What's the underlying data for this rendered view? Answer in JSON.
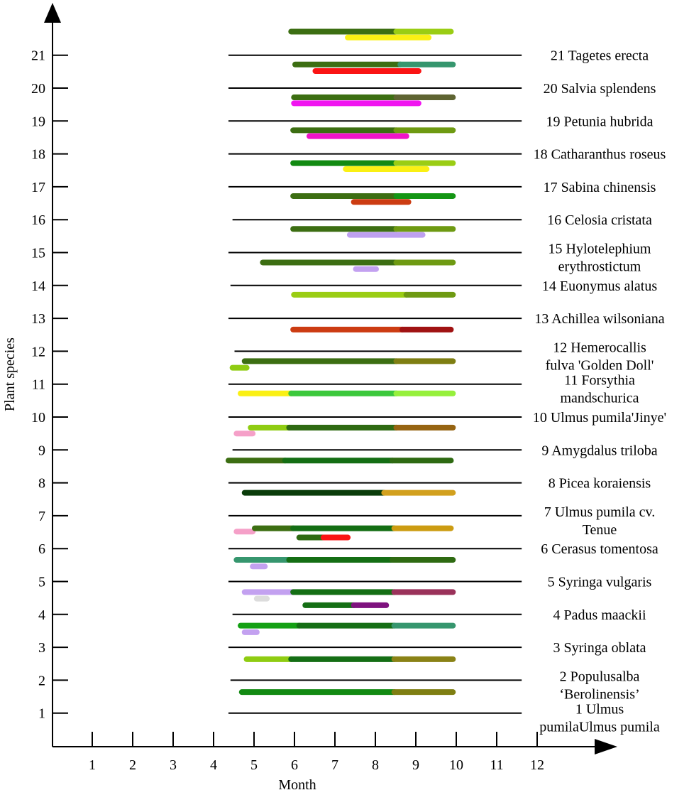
{
  "chart_data": {
    "type": "gantt",
    "title": "",
    "xlabel": "Month",
    "ylabel": "Plant species",
    "xlim": [
      0,
      13.5
    ],
    "ylim": [
      0,
      22.1
    ],
    "x_ticks": [
      "1",
      "2",
      "3",
      "4",
      "5",
      "6",
      "7",
      "8",
      "9",
      "10",
      "11",
      "12"
    ],
    "y_ticks": [
      "1",
      "2",
      "3",
      "4",
      "5",
      "6",
      "7",
      "8",
      "9",
      "10",
      "11",
      "12",
      "13",
      "14",
      "15",
      "16",
      "17",
      "18",
      "19",
      "20",
      "21"
    ],
    "species": [
      {
        "id": 1,
        "lines": [
          "1 Ulmus",
          "pumilaUlmus pumila"
        ],
        "line_x": [
          4.35,
          11.6
        ]
      },
      {
        "id": 2,
        "lines": [
          "2 Populusalba",
          "‘Berolinensis’"
        ],
        "line_x": [
          4.4,
          11.6
        ]
      },
      {
        "id": 3,
        "lines": [
          "3 Syringa oblata"
        ],
        "line_x": [
          4.35,
          11.6
        ]
      },
      {
        "id": 4,
        "lines": [
          "4 Padus maackii"
        ],
        "line_x": [
          4.45,
          11.6
        ]
      },
      {
        "id": 5,
        "lines": [
          "5 Syringa vulgaris"
        ],
        "line_x": [
          4.35,
          11.6
        ]
      },
      {
        "id": 6,
        "lines": [
          "6 Cerasus tomentosa"
        ],
        "line_x": [
          4.35,
          11.6
        ]
      },
      {
        "id": 7,
        "lines": [
          "7 Ulmus pumila cv.",
          "Tenue"
        ],
        "line_x": [
          4.35,
          11.6
        ]
      },
      {
        "id": 8,
        "lines": [
          "8 Picea koraiensis"
        ],
        "line_x": [
          4.35,
          11.6
        ]
      },
      {
        "id": 9,
        "lines": [
          "9 Amygdalus triloba"
        ],
        "line_x": [
          4.45,
          11.6
        ]
      },
      {
        "id": 10,
        "lines": [
          "10 Ulmus pumila'Jinye'"
        ],
        "line_x": [
          4.35,
          11.6
        ]
      },
      {
        "id": 11,
        "lines": [
          "11 Forsythia",
          "mandschurica"
        ],
        "line_x": [
          4.35,
          11.6
        ]
      },
      {
        "id": 12,
        "lines": [
          "12 Hemerocallis",
          "fulva 'Golden Doll'"
        ],
        "line_x": [
          4.5,
          11.6
        ]
      },
      {
        "id": 13,
        "lines": [
          "13 Achillea wilsoniana"
        ],
        "line_x": [
          4.35,
          11.6
        ]
      },
      {
        "id": 14,
        "lines": [
          "14 Euonymus alatus"
        ],
        "line_x": [
          4.4,
          11.6
        ]
      },
      {
        "id": 15,
        "lines": [
          "15 Hylotelephium",
          "erythrostictum"
        ],
        "line_x": [
          4.35,
          11.6
        ]
      },
      {
        "id": 16,
        "lines": [
          "16 Celosia cristata"
        ],
        "line_x": [
          4.45,
          11.6
        ]
      },
      {
        "id": 17,
        "lines": [
          "17 Sabina chinensis"
        ],
        "line_x": [
          4.35,
          11.6
        ]
      },
      {
        "id": 18,
        "lines": [
          "18 Catharanthus roseus"
        ],
        "line_x": [
          4.35,
          11.6
        ]
      },
      {
        "id": 19,
        "lines": [
          "19 Petunia hubrida"
        ],
        "line_x": [
          4.35,
          11.6
        ]
      },
      {
        "id": 20,
        "lines": [
          "20 Salvia splendens"
        ],
        "line_x": [
          4.35,
          11.6
        ]
      },
      {
        "id": 21,
        "lines": [
          "21 Tagetes erecta"
        ],
        "line_x": [
          4.35,
          11.6
        ]
      }
    ],
    "bars": [
      {
        "y": 1.66,
        "start": 4.68,
        "end": 8.45,
        "color": "#128A12"
      },
      {
        "y": 1.66,
        "start": 8.45,
        "end": 9.9,
        "color": "#7E7E12"
      },
      {
        "y": 2.66,
        "start": 4.8,
        "end": 5.9,
        "color": "#8FCC12"
      },
      {
        "y": 2.66,
        "start": 5.9,
        "end": 8.45,
        "color": "#146E14"
      },
      {
        "y": 2.66,
        "start": 8.45,
        "end": 9.9,
        "color": "#8A8216"
      },
      {
        "y": 3.48,
        "start": 4.75,
        "end": 5.05,
        "color": "#C3A1F0"
      },
      {
        "y": 3.68,
        "start": 4.65,
        "end": 6.1,
        "color": "#14A014"
      },
      {
        "y": 3.68,
        "start": 6.1,
        "end": 8.45,
        "color": "#146E14"
      },
      {
        "y": 3.68,
        "start": 8.45,
        "end": 9.9,
        "color": "#36966E"
      },
      {
        "y": 4.3,
        "start": 6.25,
        "end": 7.45,
        "color": "#146E14"
      },
      {
        "y": 4.3,
        "start": 7.45,
        "end": 8.25,
        "color": "#7E127E"
      },
      {
        "y": 4.5,
        "start": 5.05,
        "end": 5.3,
        "color": "#DCDCDC"
      },
      {
        "y": 4.7,
        "start": 4.75,
        "end": 5.95,
        "color": "#C3A1F0"
      },
      {
        "y": 4.7,
        "start": 5.95,
        "end": 8.45,
        "color": "#146E14"
      },
      {
        "y": 4.7,
        "start": 8.45,
        "end": 9.9,
        "color": "#9A325A"
      },
      {
        "y": 5.48,
        "start": 4.95,
        "end": 5.25,
        "color": "#C3A1F0"
      },
      {
        "y": 5.68,
        "start": 4.55,
        "end": 5.85,
        "color": "#36966E"
      },
      {
        "y": 5.68,
        "start": 5.85,
        "end": 8.4,
        "color": "#146E14"
      },
      {
        "y": 5.68,
        "start": 8.4,
        "end": 9.9,
        "color": "#2E6A12"
      },
      {
        "y": 6.36,
        "start": 6.1,
        "end": 6.7,
        "color": "#2E6A12"
      },
      {
        "y": 6.36,
        "start": 6.7,
        "end": 7.3,
        "color": "#FA1414"
      },
      {
        "y": 6.54,
        "start": 4.55,
        "end": 4.95,
        "color": "#F5A0C8"
      },
      {
        "y": 6.64,
        "start": 5.0,
        "end": 5.95,
        "color": "#3C6E12"
      },
      {
        "y": 6.64,
        "start": 5.95,
        "end": 8.45,
        "color": "#146E14"
      },
      {
        "y": 6.64,
        "start": 8.45,
        "end": 9.85,
        "color": "#CC9C12"
      },
      {
        "y": 7.72,
        "start": 4.75,
        "end": 8.2,
        "color": "#0A3C0A"
      },
      {
        "y": 7.72,
        "start": 8.2,
        "end": 9.9,
        "color": "#D2A01E"
      },
      {
        "y": 8.7,
        "start": 4.35,
        "end": 5.75,
        "color": "#3C6E12"
      },
      {
        "y": 8.7,
        "start": 5.75,
        "end": 8.4,
        "color": "#146E14"
      },
      {
        "y": 8.7,
        "start": 8.4,
        "end": 9.85,
        "color": "#2E6A12"
      },
      {
        "y": 9.52,
        "start": 4.55,
        "end": 4.95,
        "color": "#F5A0C8"
      },
      {
        "y": 9.7,
        "start": 4.9,
        "end": 5.85,
        "color": "#8FCC12"
      },
      {
        "y": 9.7,
        "start": 5.85,
        "end": 8.5,
        "color": "#2E6A12"
      },
      {
        "y": 9.7,
        "start": 8.5,
        "end": 9.9,
        "color": "#966412"
      },
      {
        "y": 10.74,
        "start": 4.65,
        "end": 5.9,
        "color": "#FAF014"
      },
      {
        "y": 10.74,
        "start": 5.9,
        "end": 8.5,
        "color": "#3CC83C"
      },
      {
        "y": 10.74,
        "start": 8.5,
        "end": 9.9,
        "color": "#96F03C"
      },
      {
        "y": 11.52,
        "start": 4.45,
        "end": 4.8,
        "color": "#8FCC12"
      },
      {
        "y": 11.72,
        "start": 4.75,
        "end": 8.5,
        "color": "#3C6E12"
      },
      {
        "y": 11.72,
        "start": 8.5,
        "end": 9.9,
        "color": "#7E7E12"
      },
      {
        "y": 12.68,
        "start": 5.95,
        "end": 8.65,
        "color": "#CC3C12"
      },
      {
        "y": 12.68,
        "start": 8.65,
        "end": 9.85,
        "color": "#A01212"
      },
      {
        "y": 13.74,
        "start": 5.97,
        "end": 8.75,
        "color": "#9ACD14"
      },
      {
        "y": 13.74,
        "start": 8.75,
        "end": 9.9,
        "color": "#6E9A12"
      },
      {
        "y": 14.52,
        "start": 7.5,
        "end": 8.0,
        "color": "#C3A1F0"
      },
      {
        "y": 14.72,
        "start": 5.2,
        "end": 8.5,
        "color": "#3C6E12"
      },
      {
        "y": 14.72,
        "start": 8.5,
        "end": 9.9,
        "color": "#6E9A12"
      },
      {
        "y": 15.56,
        "start": 7.35,
        "end": 9.15,
        "color": "#BEA0F0"
      },
      {
        "y": 15.74,
        "start": 5.95,
        "end": 8.5,
        "color": "#3C6E12"
      },
      {
        "y": 15.74,
        "start": 8.5,
        "end": 9.9,
        "color": "#6E9A12"
      },
      {
        "y": 16.56,
        "start": 7.45,
        "end": 8.8,
        "color": "#CC3C12"
      },
      {
        "y": 16.74,
        "start": 5.95,
        "end": 8.5,
        "color": "#3C6E12"
      },
      {
        "y": 16.74,
        "start": 8.5,
        "end": 9.9,
        "color": "#149614"
      },
      {
        "y": 17.56,
        "start": 7.25,
        "end": 9.25,
        "color": "#FAF014"
      },
      {
        "y": 17.74,
        "start": 5.95,
        "end": 8.5,
        "color": "#128A12"
      },
      {
        "y": 17.74,
        "start": 8.5,
        "end": 9.9,
        "color": "#9ACD14"
      },
      {
        "y": 18.56,
        "start": 6.35,
        "end": 8.75,
        "color": "#F014C8"
      },
      {
        "y": 18.74,
        "start": 5.95,
        "end": 8.5,
        "color": "#3C6E12"
      },
      {
        "y": 18.74,
        "start": 8.5,
        "end": 9.9,
        "color": "#6E9A12"
      },
      {
        "y": 19.56,
        "start": 5.97,
        "end": 9.05,
        "color": "#F014F0"
      },
      {
        "y": 19.74,
        "start": 5.97,
        "end": 8.5,
        "color": "#3C6E12"
      },
      {
        "y": 19.74,
        "start": 8.5,
        "end": 9.9,
        "color": "#5E6432"
      },
      {
        "y": 20.54,
        "start": 6.5,
        "end": 9.05,
        "color": "#FA1414"
      },
      {
        "y": 20.74,
        "start": 6.0,
        "end": 8.6,
        "color": "#3C6E12"
      },
      {
        "y": 20.74,
        "start": 8.6,
        "end": 9.9,
        "color": "#36966E"
      },
      {
        "y": 21.56,
        "start": 7.3,
        "end": 9.3,
        "color": "#FAF014"
      },
      {
        "y": 21.74,
        "start": 5.9,
        "end": 8.5,
        "color": "#3C6E12"
      },
      {
        "y": 21.74,
        "start": 8.5,
        "end": 9.85,
        "color": "#9ACD14"
      }
    ]
  }
}
